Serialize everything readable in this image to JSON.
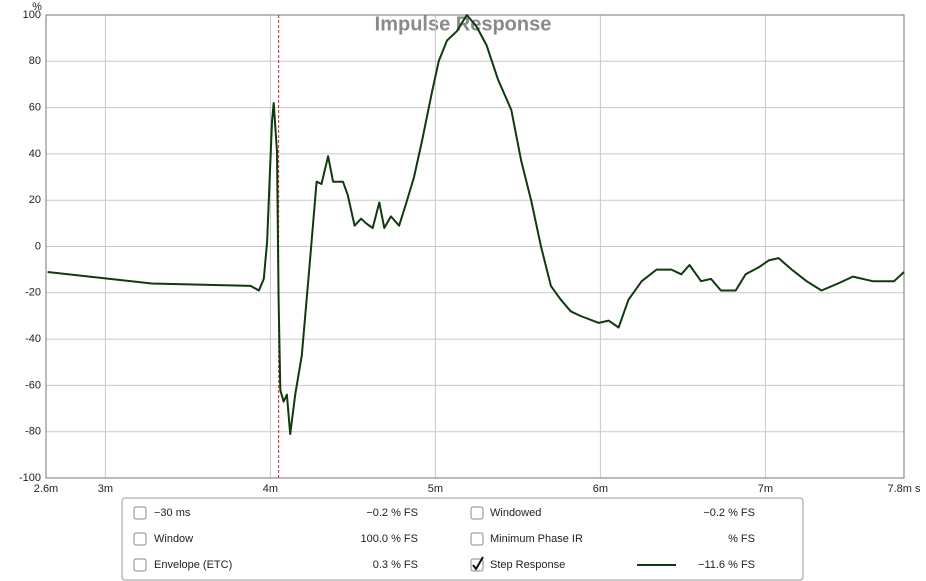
{
  "chart_data": {
    "type": "line",
    "title": "Impulse Response",
    "y_label": "%",
    "xlim": [
      2.64,
      7.84
    ],
    "xticks": [
      {
        "value": 2.64,
        "label": "2.6m"
      },
      {
        "value": 3,
        "label": "3m"
      },
      {
        "value": 4,
        "label": "4m"
      },
      {
        "value": 5,
        "label": "5m"
      },
      {
        "value": 6,
        "label": "6m"
      },
      {
        "value": 7,
        "label": "7m"
      },
      {
        "value": 7.84,
        "label": "7.8m s"
      }
    ],
    "ylim": [
      -100,
      100
    ],
    "yticks": [
      -100,
      -80,
      -60,
      -40,
      -20,
      0,
      20,
      40,
      60,
      80,
      100
    ],
    "grid": true,
    "cursor_x": 4.05,
    "x": [
      2.65,
      3.28,
      3.88,
      3.93,
      3.96,
      3.98,
      4.01,
      4.02,
      4.04,
      4.05,
      4.06,
      4.08,
      4.1,
      4.12,
      4.15,
      4.19,
      4.24,
      4.28,
      4.31,
      4.35,
      4.38,
      4.44,
      4.47,
      4.51,
      4.55,
      4.58,
      4.62,
      4.66,
      4.69,
      4.73,
      4.78,
      4.82,
      4.87,
      4.92,
      4.98,
      5.02,
      5.07,
      5.13,
      5.19,
      5.25,
      5.31,
      5.38,
      5.46,
      5.52,
      5.58,
      5.64,
      5.7,
      5.76,
      5.82,
      5.88,
      5.99,
      6.05,
      6.11,
      6.17,
      6.25,
      6.34,
      6.43,
      6.49,
      6.54,
      6.61,
      6.67,
      6.73,
      6.82,
      6.88,
      6.96,
      7.02,
      7.08,
      7.16,
      7.25,
      7.34,
      7.44,
      7.53,
      7.65,
      7.78,
      7.84
    ],
    "series": [
      {
        "name": "Step Response",
        "color": "#0e3a0e",
        "values": [
          -11,
          -16,
          -17,
          -19,
          -14,
          2,
          54,
          62,
          41,
          -23,
          -62,
          -67,
          -64,
          -81,
          -64,
          -47,
          -6,
          28,
          27,
          39,
          28,
          28,
          22,
          9,
          12,
          10,
          8,
          19,
          8,
          13,
          9,
          18,
          30,
          46,
          67,
          80,
          89,
          93,
          100,
          95,
          87,
          72,
          59,
          37,
          20,
          0,
          -17,
          -23,
          -28,
          -30,
          -33,
          -32,
          -35,
          -23,
          -15,
          -10,
          -10,
          -12,
          -8,
          -15,
          -14,
          -19,
          -19,
          -12,
          -9,
          -6,
          -5,
          -10,
          -15,
          -19,
          -16,
          -13,
          -15,
          -15,
          -11
        ]
      }
    ],
    "legend_panel": [
      {
        "label": "−30 ms",
        "value": "−0.2 % FS",
        "checked": false,
        "color": "#2f8f2f",
        "value_color": "#2f8f2f"
      },
      {
        "label": "Window",
        "value": "100.0 % FS",
        "checked": false,
        "color": "#1010cc",
        "value_color": "#1010cc"
      },
      {
        "label": "Envelope (ETC)",
        "value": "0.3 % FS",
        "checked": false,
        "color": "#1d5a1d",
        "value_color": "#1d5a1d"
      },
      {
        "label": "Windowed",
        "value": "−0.2 % FS",
        "checked": false,
        "color": "#22aa22",
        "value_color": "#22aa22"
      },
      {
        "label": "Minimum Phase IR",
        "value": "% FS",
        "checked": false,
        "color": "#999999",
        "value_color": "#999999"
      },
      {
        "label": "Step Response",
        "value": "−11.6 % FS",
        "checked": true,
        "color": "#0e3a0e",
        "value_color": "#0e3a0e",
        "swatch": true
      }
    ]
  }
}
